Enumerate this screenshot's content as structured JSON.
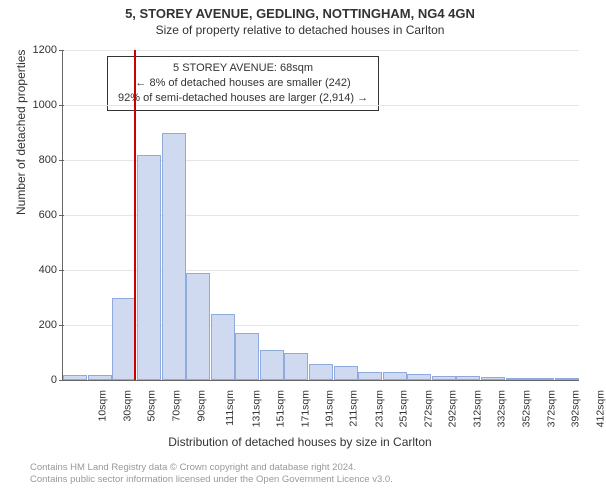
{
  "title_main": "5, STOREY AVENUE, GEDLING, NOTTINGHAM, NG4 4GN",
  "title_sub": "Size of property relative to detached houses in Carlton",
  "ylabel": "Number of detached properties",
  "xlabel": "Distribution of detached houses by size in Carlton",
  "footer_line1": "Contains HM Land Registry data © Crown copyright and database right 2024.",
  "footer_line2": "Contains public sector information licensed under the Open Government Licence v3.0.",
  "callout": {
    "line1": "5 STOREY AVENUE: 68sqm",
    "line2": "← 8% of detached houses are smaller (242)",
    "line3": "92% of semi-detached houses are larger (2,914) →"
  },
  "chart": {
    "type": "histogram",
    "ymax": 1200,
    "ytick_step": 200,
    "yticks": [
      0,
      200,
      400,
      600,
      800,
      1000,
      1200
    ],
    "bar_fill": "#cfdaf0",
    "bar_border": "#8faadc",
    "grid_color": "#e5e5e5",
    "axis_color": "#666666",
    "marker_color": "#cc0000",
    "marker_x_sqm": 68,
    "x_start": 10,
    "x_step": 20,
    "bar_count": 21,
    "values": [
      20,
      20,
      300,
      820,
      900,
      390,
      240,
      170,
      110,
      100,
      60,
      50,
      30,
      30,
      22,
      15,
      15,
      10,
      5,
      5,
      5
    ],
    "xticks": [
      "10sqm",
      "30sqm",
      "50sqm",
      "70sqm",
      "90sqm",
      "111sqm",
      "131sqm",
      "151sqm",
      "171sqm",
      "191sqm",
      "211sqm",
      "231sqm",
      "251sqm",
      "272sqm",
      "292sqm",
      "312sqm",
      "332sqm",
      "352sqm",
      "372sqm",
      "392sqm",
      "412sqm"
    ]
  }
}
